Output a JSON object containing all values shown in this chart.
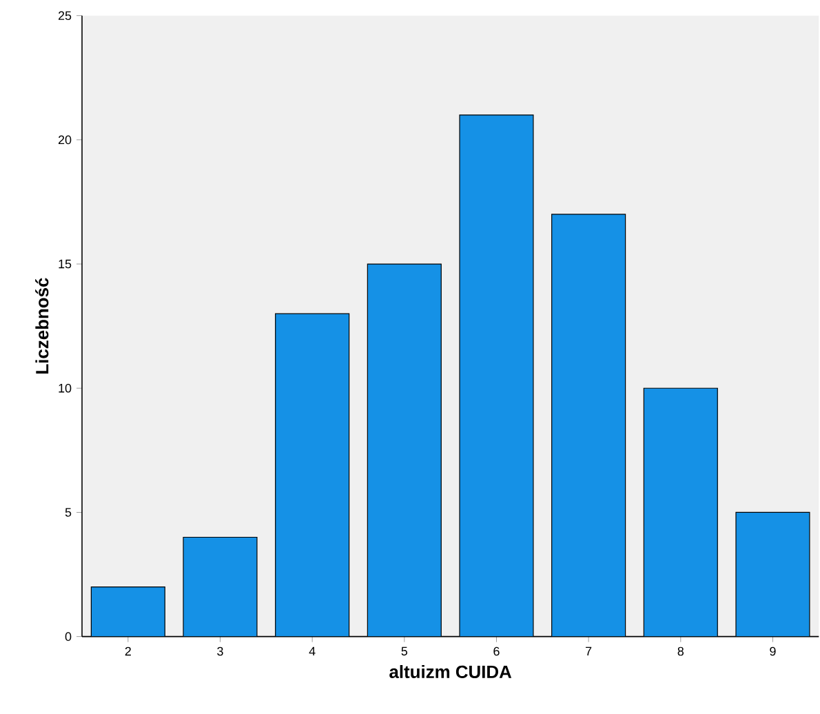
{
  "chart_data": {
    "type": "bar",
    "xlabel": "altuizm CUIDA",
    "ylabel": "Liczebność",
    "categories": [
      "2",
      "3",
      "4",
      "5",
      "6",
      "7",
      "8",
      "9"
    ],
    "values": [
      2,
      4,
      13,
      15,
      21,
      17,
      10,
      5
    ],
    "color": "#1591e6",
    "ylim": [
      0,
      25
    ],
    "yticks": [
      0,
      5,
      10,
      15,
      20,
      25
    ],
    "grid": false
  }
}
